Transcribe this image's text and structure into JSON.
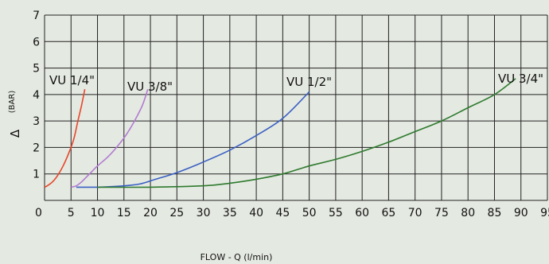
{
  "chart_data": {
    "type": "line",
    "title": "",
    "xlabel": "FLOW - Q (l/min)",
    "ylabel_symbol": "Δ",
    "ylabel_unit": "(BAR)",
    "xlim": [
      0,
      95
    ],
    "ylim": [
      0,
      7
    ],
    "x_ticks": [
      0,
      5,
      10,
      15,
      20,
      25,
      30,
      35,
      40,
      45,
      50,
      55,
      60,
      65,
      70,
      75,
      80,
      85,
      90,
      95
    ],
    "y_ticks": [
      1,
      2,
      3,
      4,
      5,
      6,
      7
    ],
    "grid": true,
    "series": [
      {
        "name": "VU 1/4\"",
        "color": "#e8462a",
        "points": [
          [
            0,
            0.5
          ],
          [
            0.5,
            0.55
          ],
          [
            1.5,
            0.7
          ],
          [
            2.5,
            0.95
          ],
          [
            3.5,
            1.3
          ],
          [
            4.5,
            1.75
          ],
          [
            5.5,
            2.3
          ],
          [
            6.3,
            3.0
          ],
          [
            7.0,
            3.6
          ],
          [
            7.6,
            4.2
          ]
        ]
      },
      {
        "name": "VU 3/8\"",
        "color": "#b27ad2",
        "points": [
          [
            5,
            0.5
          ],
          [
            6,
            0.55
          ],
          [
            7,
            0.7
          ],
          [
            8.5,
            1.0
          ],
          [
            10,
            1.3
          ],
          [
            12,
            1.65
          ],
          [
            14,
            2.1
          ],
          [
            15.5,
            2.5
          ],
          [
            17,
            3.0
          ],
          [
            18.5,
            3.6
          ],
          [
            19.5,
            4.2
          ]
        ]
      },
      {
        "name": "VU 1/2\"",
        "color": "#3a5fc4",
        "points": [
          [
            6,
            0.5
          ],
          [
            10,
            0.5
          ],
          [
            15,
            0.55
          ],
          [
            18,
            0.62
          ],
          [
            21,
            0.8
          ],
          [
            25,
            1.05
          ],
          [
            30,
            1.45
          ],
          [
            35,
            1.9
          ],
          [
            40,
            2.45
          ],
          [
            45,
            3.1
          ],
          [
            50,
            4.1
          ]
        ]
      },
      {
        "name": "VU 3/4\"",
        "color": "#2e7a2e",
        "points": [
          [
            10,
            0.5
          ],
          [
            20,
            0.5
          ],
          [
            30,
            0.55
          ],
          [
            35,
            0.65
          ],
          [
            40,
            0.8
          ],
          [
            45,
            1.0
          ],
          [
            50,
            1.3
          ],
          [
            55,
            1.55
          ],
          [
            60,
            1.85
          ],
          [
            65,
            2.2
          ],
          [
            70,
            2.6
          ],
          [
            75,
            3.0
          ],
          [
            80,
            3.5
          ],
          [
            85,
            4.0
          ],
          [
            89,
            4.6
          ]
        ]
      }
    ]
  }
}
